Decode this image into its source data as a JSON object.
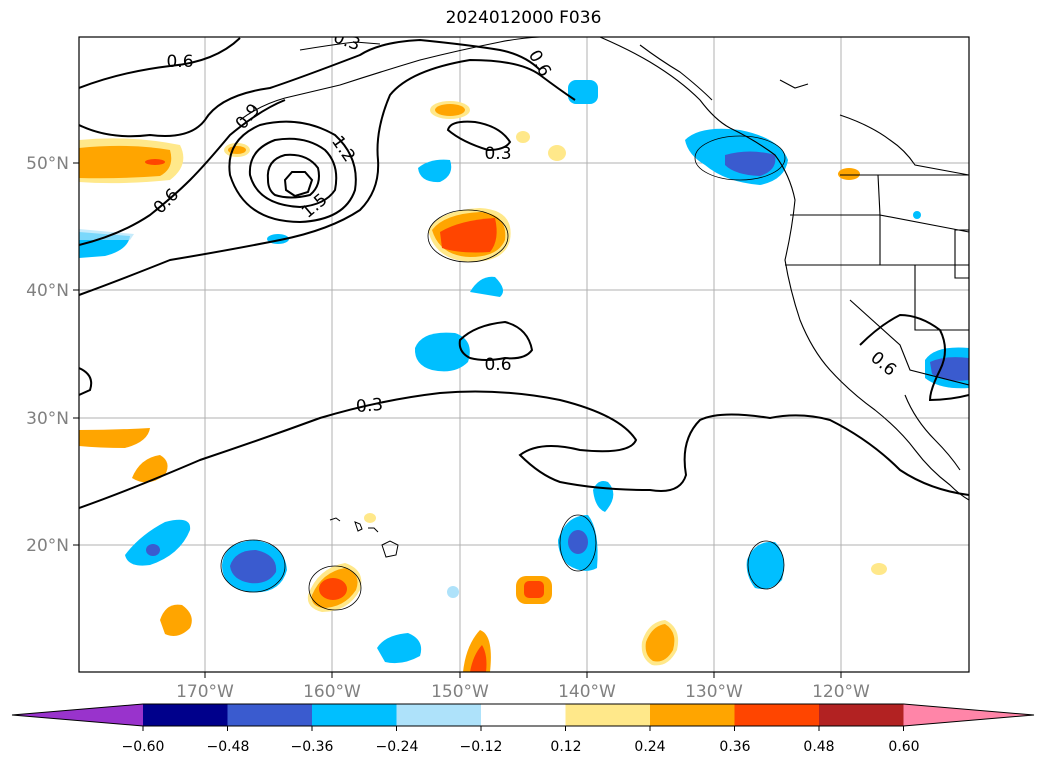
{
  "title": "2024012000 F036",
  "lat_labels": [
    "50°N",
    "40°N",
    "30°N",
    "20°N"
  ],
  "lon_labels": [
    "170°W",
    "160°W",
    "150°W",
    "140°W",
    "130°W",
    "120°W"
  ],
  "contour_labels": [
    "0.6",
    "0.9",
    "0.6",
    "1.2",
    "1.5",
    "0.6",
    "0.3",
    "0.6",
    "0.3",
    "0.6",
    "0.3"
  ],
  "colorbar": {
    "ticks": [
      "−0.60",
      "−0.48",
      "−0.36",
      "−0.24",
      "−0.12",
      "0.12",
      "0.24",
      "0.36",
      "0.48",
      "0.60"
    ],
    "colors": [
      "#9933cc",
      "#00008b",
      "#3a5bcf",
      "#00bfff",
      "#aee2fa",
      "#ffffff",
      "#ffe88a",
      "#ffa500",
      "#ff4500",
      "#b22222",
      "#ff85a8"
    ]
  }
}
